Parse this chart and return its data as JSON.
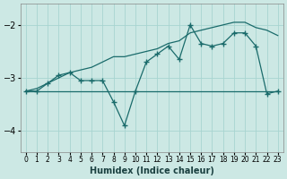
{
  "xlabel": "Humidex (Indice chaleur)",
  "bg_color": "#cce8e4",
  "grid_color": "#a8d4d0",
  "line_color": "#1a6b6b",
  "xlim": [
    -0.5,
    23.5
  ],
  "ylim": [
    -4.4,
    -1.6
  ],
  "yticks": [
    -4,
    -3,
    -2
  ],
  "xticks": [
    0,
    1,
    2,
    3,
    4,
    5,
    6,
    7,
    8,
    9,
    10,
    11,
    12,
    13,
    14,
    15,
    16,
    17,
    18,
    19,
    20,
    21,
    22,
    23
  ],
  "flat_x": [
    0,
    1,
    2,
    3,
    4,
    5,
    6,
    7,
    8,
    9,
    10,
    11,
    12,
    13,
    14,
    15,
    16,
    17,
    18,
    19,
    20,
    21,
    22,
    23
  ],
  "flat_y": [
    -3.25,
    -3.25,
    -3.25,
    -3.25,
    -3.25,
    -3.25,
    -3.25,
    -3.25,
    -3.25,
    -3.25,
    -3.25,
    -3.25,
    -3.25,
    -3.25,
    -3.25,
    -3.25,
    -3.25,
    -3.25,
    -3.25,
    -3.25,
    -3.25,
    -3.25,
    -3.25,
    -3.25
  ],
  "zigzag_x": [
    0,
    1,
    2,
    3,
    4,
    5,
    6,
    7,
    8,
    9,
    10,
    11,
    12,
    13,
    14,
    15,
    16,
    17,
    18,
    19,
    20,
    21,
    22,
    23
  ],
  "zigzag_y": [
    -3.25,
    -3.25,
    -3.1,
    -2.95,
    -2.9,
    -3.05,
    -3.05,
    -3.05,
    -3.45,
    -3.9,
    -3.25,
    -2.7,
    -2.55,
    -2.4,
    -2.65,
    -2.0,
    -2.35,
    -2.4,
    -2.35,
    -2.15,
    -2.15,
    -2.4,
    -3.3,
    -3.25
  ],
  "trend_x": [
    0,
    1,
    2,
    3,
    4,
    5,
    6,
    7,
    8,
    9,
    10,
    11,
    12,
    13,
    14,
    15,
    16,
    17,
    18,
    19,
    20,
    21,
    22,
    23
  ],
  "trend_y": [
    -3.25,
    -3.2,
    -3.1,
    -3.0,
    -2.9,
    -2.85,
    -2.8,
    -2.7,
    -2.6,
    -2.6,
    -2.55,
    -2.5,
    -2.45,
    -2.35,
    -2.3,
    -2.15,
    -2.1,
    -2.05,
    -2.0,
    -1.95,
    -1.95,
    -2.05,
    -2.1,
    -2.2
  ]
}
